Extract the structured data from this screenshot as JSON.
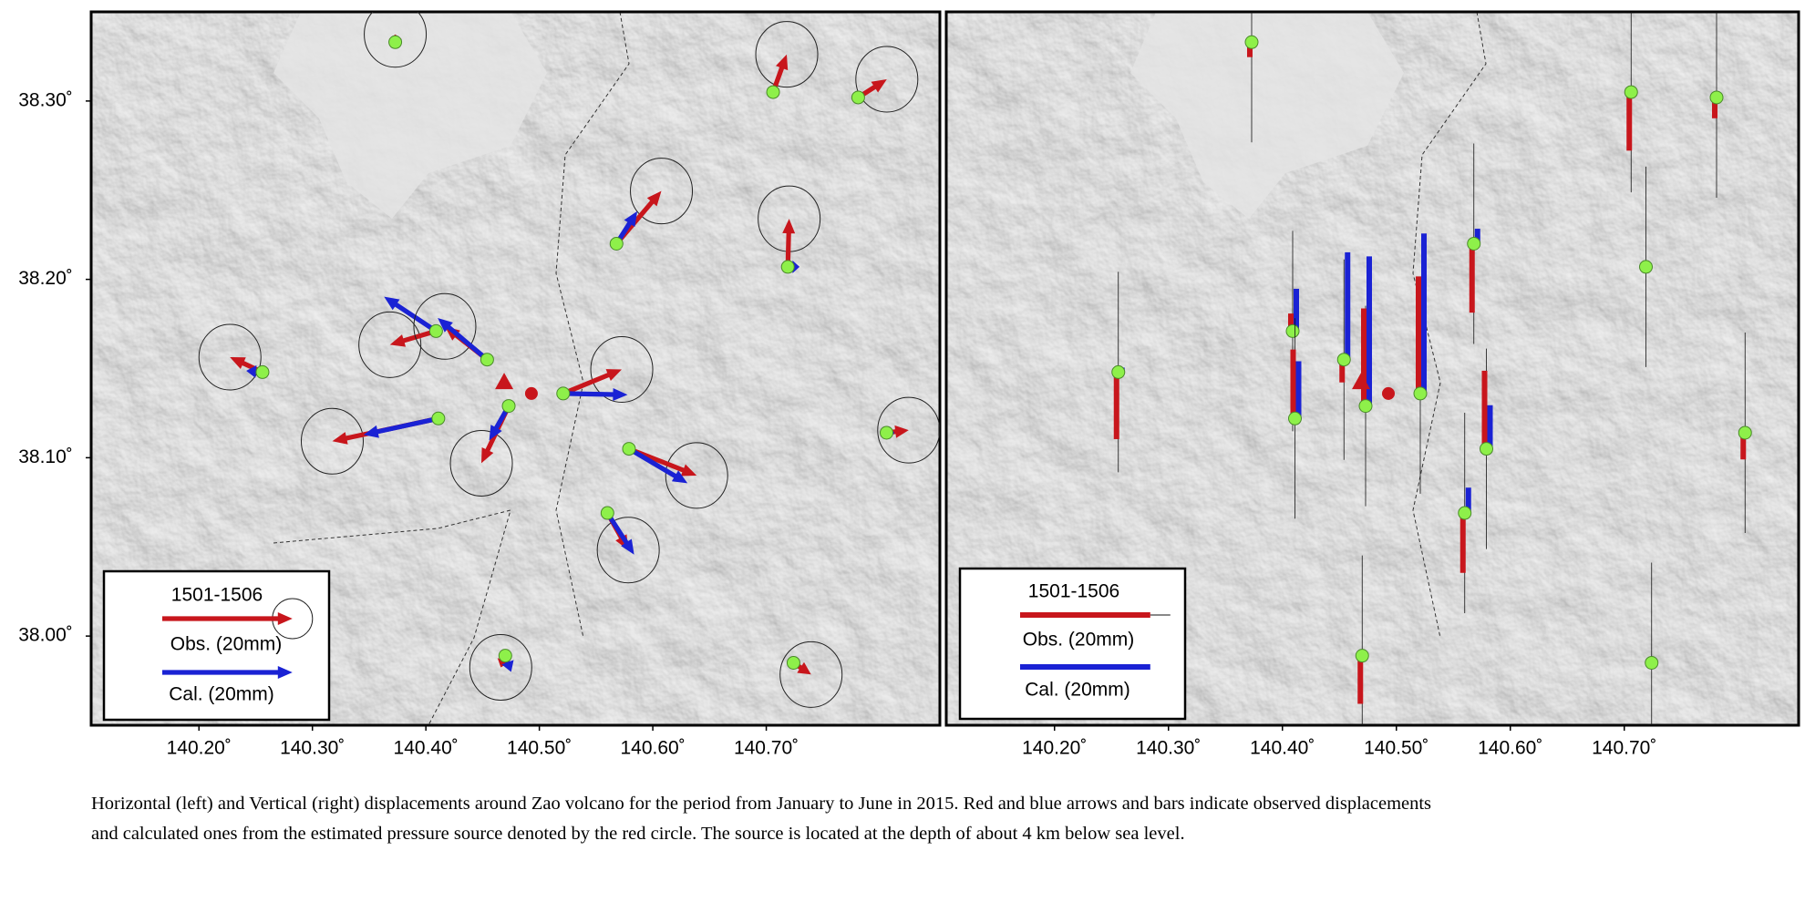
{
  "map": {
    "xlim": [
      140.105,
      140.853
    ],
    "ylim": [
      37.95,
      38.35
    ],
    "xticks": [
      {
        "value": 140.2,
        "label": "140.20˚"
      },
      {
        "value": 140.3,
        "label": "140.30˚"
      },
      {
        "value": 140.4,
        "label": "140.40˚"
      },
      {
        "value": 140.5,
        "label": "140.50˚"
      },
      {
        "value": 140.6,
        "label": "140.60˚"
      },
      {
        "value": 140.7,
        "label": "140.70˚"
      }
    ],
    "yticks": [
      {
        "value": 38.0,
        "label": "38.00˚"
      },
      {
        "value": 38.1,
        "label": "38.10˚"
      },
      {
        "value": 38.2,
        "label": "38.20˚"
      },
      {
        "value": 38.3,
        "label": "38.30˚"
      }
    ],
    "obs_color": "#c8161c",
    "cal_color": "#1a22d4",
    "station_color": "#8ef04a"
  },
  "volcano": {
    "lon": 140.469,
    "lat": 38.142
  },
  "source": {
    "lon": 140.493,
    "lat": 38.136
  },
  "stations": [
    {
      "lon": 140.373,
      "lat": 38.333,
      "obs": [
        0,
        1.2,
        -2.3
      ],
      "cal": [
        1,
        0.4,
        0.3
      ]
    },
    {
      "lon": 140.706,
      "lat": 38.305,
      "obs": [
        2.1,
        5.8,
        -9.0
      ],
      "cal": [
        0.4,
        0.6,
        0.3
      ]
    },
    {
      "lon": 140.781,
      "lat": 38.302,
      "obs": [
        4.4,
        2.8,
        -3.2
      ],
      "cal": [
        0.3,
        0.2,
        0.3
      ]
    },
    {
      "lon": 140.568,
      "lat": 38.22,
      "obs": [
        6.9,
        8.1,
        -10.6
      ],
      "cal": [
        3.2,
        5.0,
        2.3
      ]
    },
    {
      "lon": 140.719,
      "lat": 38.207,
      "obs": [
        0.2,
        7.4,
        -0.2
      ],
      "cal": [
        1.8,
        0,
        0.3
      ]
    },
    {
      "lon": 140.256,
      "lat": 38.148,
      "obs": [
        -5.0,
        2.3,
        -10.3
      ],
      "cal": [
        -2.5,
        0.2,
        0.7
      ]
    },
    {
      "lon": 140.409,
      "lat": 38.171,
      "obs": [
        -7.1,
        -2.1,
        2.7
      ],
      "cal": [
        -8.0,
        5.3,
        6.5
      ]
    },
    {
      "lon": 140.454,
      "lat": 38.155,
      "obs": [
        -6.5,
        5.1,
        -3.5
      ],
      "cal": [
        -7.6,
        6.4,
        16.5
      ]
    },
    {
      "lon": 140.473,
      "lat": 38.129,
      "obs": [
        -4.2,
        -8.8,
        15.0
      ],
      "cal": [
        -3.0,
        -5.3,
        23.0
      ]
    },
    {
      "lon": 140.521,
      "lat": 38.136,
      "obs": [
        9.0,
        3.7,
        18.0
      ],
      "cal": [
        9.9,
        -0.2,
        24.6
      ]
    },
    {
      "lon": 140.411,
      "lat": 38.122,
      "obs": [
        -16.3,
        -3.5,
        10.6
      ],
      "cal": [
        -11.5,
        -2.5,
        8.8
      ]
    },
    {
      "lon": 140.579,
      "lat": 38.105,
      "obs": [
        10.4,
        -4.1,
        12.0
      ],
      "cal": [
        9.0,
        -5.3,
        6.7
      ]
    },
    {
      "lon": 140.56,
      "lat": 38.069,
      "obs": [
        3.2,
        -5.7,
        -9.2
      ],
      "cal": [
        4.1,
        -6.4,
        3.9
      ]
    },
    {
      "lon": 140.47,
      "lat": 37.989,
      "obs": [
        -0.7,
        -1.8,
        -7.4
      ],
      "cal": [
        0.9,
        -2.5,
        0.3
      ]
    },
    {
      "lon": 140.724,
      "lat": 37.985,
      "obs": [
        2.7,
        -1.8,
        -0.2
      ],
      "cal": [
        0.9,
        -0.5,
        0.3
      ]
    },
    {
      "lon": 140.806,
      "lat": 38.114,
      "obs": [
        3.4,
        0.4,
        -4.1
      ],
      "cal": [
        1.2,
        0,
        0
      ]
    }
  ],
  "legend": {
    "period": "1501-1506",
    "obs": "Obs. (20mm)",
    "cal": "Cal. (20mm)",
    "scale_mm": 20
  },
  "caption": [
    "Horizontal (left) and Vertical (right) displacements around Zao volcano for the period from January to June in 2015. Red and blue arrows and bars indicate observed displacements",
    "and calculated ones from the estimated pressure source denoted by the red circle. The source is located at the depth of about 4 km below sea level."
  ]
}
